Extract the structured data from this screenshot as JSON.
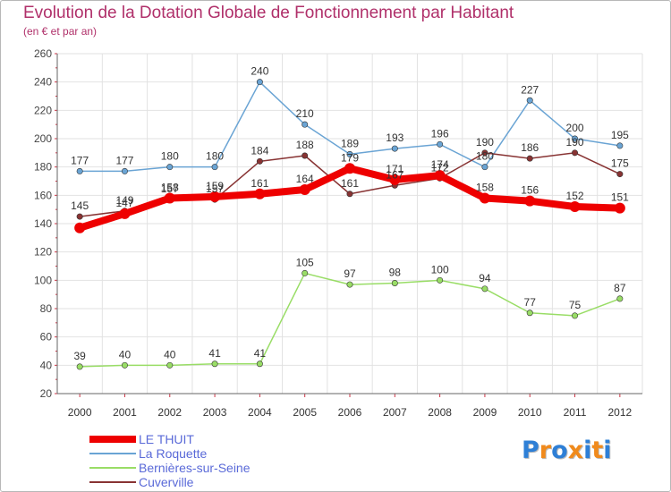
{
  "chart_data": {
    "type": "line",
    "title": "Evolution de la Dotation Globale de Fonctionnement par Habitant",
    "subtitle": "(en € et par an)",
    "x": [
      "2000",
      "2001",
      "2002",
      "2003",
      "2004",
      "2005",
      "2006",
      "2007",
      "2008",
      "2009",
      "2010",
      "2011",
      "2012"
    ],
    "ylim": [
      20,
      260
    ],
    "yticks": [
      "20",
      "40",
      "60",
      "80",
      "100",
      "120",
      "140",
      "160",
      "180",
      "200",
      "220",
      "240",
      "260"
    ],
    "grid": true,
    "legend_position": "bottom-left",
    "series": [
      {
        "name": "LE THUIT",
        "color": "#ee0000",
        "values": [
          137,
          147,
          158,
          159,
          161,
          164,
          179,
          171,
          174,
          158,
          156,
          152,
          151
        ],
        "labels": [
          "",
          "147",
          "158",
          "159",
          "161",
          "164",
          "179",
          "171",
          "174",
          "158",
          "156",
          "152",
          "151"
        ]
      },
      {
        "name": "La Roquette",
        "color": "#6aa4d4",
        "values": [
          177,
          177,
          180,
          180,
          240,
          210,
          189,
          193,
          196,
          180,
          227,
          200,
          195
        ],
        "labels": [
          "177",
          "177",
          "180",
          "180",
          "240",
          "210",
          "189",
          "193",
          "196",
          "180",
          "227",
          "200",
          "195"
        ]
      },
      {
        "name": "Bernières-sur-Seine",
        "color": "#99dd66",
        "values": [
          39,
          40,
          40,
          41,
          41,
          105,
          97,
          98,
          100,
          94,
          77,
          75,
          87
        ],
        "labels": [
          "39",
          "40",
          "40",
          "41",
          "41",
          "105",
          "97",
          "98",
          "100",
          "94",
          "77",
          "75",
          "87"
        ]
      },
      {
        "name": "Cuverville",
        "color": "#883333",
        "values": [
          145,
          149,
          157,
          157,
          184,
          188,
          161,
          167,
          172,
          190,
          186,
          190,
          175
        ],
        "labels": [
          "145",
          "149",
          "157",
          "157",
          "184",
          "188",
          "161",
          "167",
          "172",
          "190",
          "186",
          "190",
          "175"
        ]
      }
    ]
  },
  "logo": {
    "text": "Proxiti",
    "colors": [
      "#2e7fd6",
      "#f08a1c",
      "#2e7fd6",
      "#f08a1c",
      "#2e7fd6",
      "#f08a1c",
      "#2e7fd6"
    ]
  }
}
